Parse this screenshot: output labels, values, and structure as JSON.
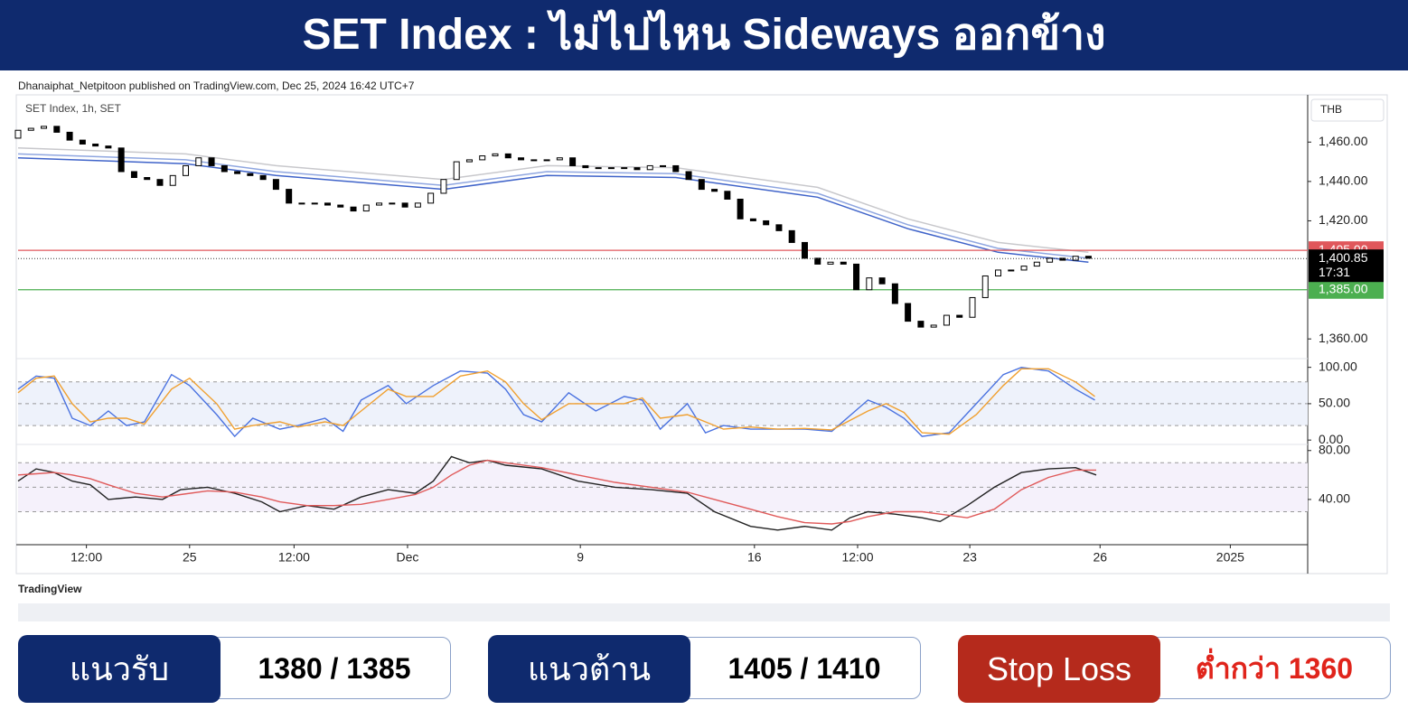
{
  "header": {
    "title": "SET Index : ไม่ไปไหน Sideways ออกข้าง"
  },
  "attribution": "Dhanaiphat_Netpitoon published on TradingView.com, Dec 25, 2024 16:42 UTC+7",
  "brand": "TradingView",
  "levels": [
    {
      "label": "แนวรับ",
      "value": "1380 / 1385",
      "color": "#0f2a6e",
      "text_color": "#000000"
    },
    {
      "label": "แนวต้าน",
      "value": "1405 / 1410",
      "color": "#0f2a6e",
      "text_color": "#000000"
    },
    {
      "label": "Stop Loss",
      "value": "ต่ำกว่า 1360",
      "color": "#b52a1c",
      "text_color": "#e0241b"
    }
  ],
  "chart_data": [
    {
      "type": "candlestick",
      "title": "SET Index, 1h, SET",
      "currency": "THB",
      "up_color": "#ffffff",
      "down_color": "#000000",
      "open": [
        1462,
        1466,
        1467,
        1468,
        1465,
        1461,
        1459,
        1458,
        1457,
        1445,
        1442,
        1441,
        1438,
        1443,
        1448,
        1452,
        1448,
        1445,
        1444,
        1443,
        1441,
        1436,
        1429,
        1429,
        1429,
        1428,
        1427,
        1425,
        1428,
        1429,
        1429,
        1427,
        1429,
        1434,
        1441,
        1450,
        1451,
        1453,
        1454,
        1452,
        1451,
        1451,
        1451,
        1452,
        1448,
        1447,
        1447,
        1447,
        1447,
        1446,
        1448,
        1448,
        1445,
        1441,
        1436,
        1435,
        1431,
        1421,
        1420,
        1418,
        1415,
        1409,
        1401,
        1398,
        1399,
        1398,
        1385,
        1391,
        1388,
        1378,
        1369,
        1366,
        1367,
        1372,
        1371,
        1381,
        1392,
        1395,
        1395,
        1397,
        1399,
        1401,
        1400,
        1402
      ],
      "close": [
        1466,
        1467,
        1468,
        1465,
        1461,
        1459,
        1458,
        1457,
        1445,
        1442,
        1441,
        1438,
        1443,
        1448,
        1452,
        1448,
        1445,
        1444,
        1443,
        1441,
        1436,
        1429,
        1429,
        1429,
        1428,
        1427,
        1425,
        1428,
        1429,
        1429,
        1427,
        1429,
        1434,
        1441,
        1450,
        1451,
        1453,
        1454,
        1452,
        1451,
        1451,
        1451,
        1452,
        1448,
        1447,
        1447,
        1447,
        1447,
        1446,
        1448,
        1448,
        1445,
        1441,
        1436,
        1435,
        1431,
        1421,
        1420,
        1418,
        1415,
        1409,
        1401,
        1398,
        1399,
        1398,
        1385,
        1391,
        1388,
        1378,
        1369,
        1366,
        1367,
        1372,
        1371,
        1381,
        1392,
        1395,
        1395,
        1397,
        1399,
        1401,
        1400,
        1402,
        1401
      ],
      "overlays": [
        {
          "color": "#c8c8cc",
          "x": [
            0,
            13,
            20,
            33,
            41,
            51,
            62,
            69,
            76,
            83
          ],
          "values": [
            1457,
            1454,
            1448,
            1441,
            1448,
            1447,
            1437,
            1421,
            1409,
            1404
          ]
        },
        {
          "color": "#8fa6e0",
          "x": [
            0,
            13,
            20,
            33,
            41,
            51,
            62,
            69,
            76,
            83
          ],
          "values": [
            1454,
            1451,
            1445,
            1438,
            1445,
            1444,
            1434,
            1418,
            1406,
            1401
          ]
        },
        {
          "color": "#3f63c9",
          "x": [
            0,
            13,
            20,
            33,
            41,
            51,
            62,
            69,
            76,
            83
          ],
          "values": [
            1452,
            1449,
            1443,
            1436,
            1443,
            1442,
            1432,
            1416,
            1404,
            1399
          ]
        }
      ],
      "price_lines": [
        {
          "value": 1405,
          "label": "1,405.00",
          "color": "#e0575b"
        },
        {
          "value": 1385,
          "label": "1,385.00",
          "color": "#4caf50"
        }
      ],
      "last_price": {
        "value": 1400.85,
        "label": "1,400.85"
      },
      "countdown": "17:31",
      "xlim": [
        0,
        100
      ],
      "ylim": [
        1350,
        1484
      ],
      "yticks": [
        {
          "value": 1460,
          "label": "1,460.00"
        },
        {
          "value": 1440,
          "label": "1,440.00"
        },
        {
          "value": 1420,
          "label": "1,420.00"
        },
        {
          "value": 1360,
          "label": "1,360.00"
        }
      ]
    },
    {
      "type": "line",
      "x": [
        0,
        1.4,
        2.8,
        4.2,
        5.6,
        7.0,
        8.4,
        9.8,
        11.9,
        13.3,
        15.4,
        16.8,
        18.2,
        20.3,
        21.7,
        23.8,
        25.2,
        26.6,
        28.7,
        30.1,
        32.2,
        34.3,
        36.4,
        37.8,
        39.2,
        40.6,
        42.7,
        44.8,
        47.0,
        48.4,
        49.8,
        51.9,
        53.3,
        54.7,
        56.8,
        58.9,
        61.0,
        63.1,
        65.9,
        67.3,
        68.7,
        70.1,
        72.2,
        74.3,
        76.4,
        77.8,
        79.9,
        82.0,
        83.5
      ],
      "series": [
        {
          "color": "#4a72e0",
          "values": [
            70,
            88,
            85,
            30,
            20,
            40,
            20,
            25,
            90,
            75,
            35,
            5,
            30,
            15,
            20,
            30,
            12,
            55,
            75,
            50,
            75,
            95,
            92,
            70,
            35,
            25,
            65,
            40,
            60,
            55,
            15,
            50,
            10,
            20,
            15,
            15,
            15,
            12,
            55,
            45,
            30,
            5,
            10,
            50,
            90,
            100,
            95,
            70,
            55
          ]
        },
        {
          "color": "#f0a030",
          "values": [
            65,
            85,
            88,
            50,
            25,
            30,
            30,
            22,
            70,
            85,
            50,
            15,
            20,
            25,
            18,
            25,
            20,
            40,
            70,
            60,
            60,
            88,
            95,
            80,
            50,
            28,
            50,
            50,
            50,
            58,
            30,
            35,
            25,
            15,
            18,
            15,
            16,
            14,
            40,
            50,
            38,
            10,
            8,
            35,
            75,
            98,
            98,
            80,
            60
          ]
        }
      ],
      "guides": [
        20,
        50,
        80
      ],
      "band_color": "#eef2fb",
      "xlim": [
        0,
        100
      ],
      "ylim": [
        -6,
        112
      ],
      "yticks": [
        {
          "value": 100,
          "label": "100.00"
        },
        {
          "value": 50,
          "label": "50.00"
        },
        {
          "value": 0,
          "label": "0.00"
        }
      ]
    },
    {
      "type": "line",
      "x": [
        0,
        1.4,
        2.8,
        4.2,
        5.6,
        7.0,
        9.1,
        11.2,
        12.6,
        14.7,
        16.8,
        18.9,
        20.3,
        22.4,
        24.5,
        26.6,
        28.7,
        30.8,
        32.2,
        33.6,
        35.0,
        36.4,
        37.8,
        40.6,
        43.4,
        46.3,
        49.1,
        51.9,
        54.0,
        56.8,
        58.9,
        61.0,
        63.1,
        64.5,
        65.9,
        68.0,
        70.1,
        71.5,
        73.6,
        75.7,
        77.8,
        79.9,
        82.0,
        83.6
      ],
      "series": [
        {
          "color": "#222222",
          "values": [
            55,
            65,
            62,
            55,
            52,
            40,
            42,
            40,
            48,
            50,
            45,
            38,
            30,
            35,
            32,
            42,
            48,
            45,
            55,
            75,
            70,
            72,
            68,
            65,
            55,
            50,
            48,
            45,
            30,
            18,
            15,
            18,
            15,
            25,
            30,
            28,
            25,
            22,
            35,
            50,
            62,
            65,
            66,
            60
          ]
        },
        {
          "color": "#e05a5a",
          "values": [
            60,
            61,
            62,
            60,
            57,
            52,
            45,
            42,
            44,
            47,
            46,
            42,
            38,
            35,
            35,
            36,
            40,
            44,
            50,
            60,
            68,
            72,
            70,
            66,
            60,
            54,
            50,
            46,
            40,
            32,
            26,
            21,
            20,
            22,
            26,
            30,
            30,
            28,
            25,
            32,
            48,
            58,
            64,
            64
          ]
        }
      ],
      "guides": [
        30,
        50,
        70
      ],
      "band_color": "#f5f1fb",
      "xlim": [
        0,
        100
      ],
      "ylim": [
        3,
        85
      ],
      "yticks": [
        {
          "value": 80,
          "label": "80.00"
        },
        {
          "value": 40,
          "label": "40.00"
        }
      ],
      "xticks": [
        {
          "value": 5.3,
          "label": "12:00"
        },
        {
          "value": 13.3,
          "label": "25"
        },
        {
          "value": 21.4,
          "label": "12:00"
        },
        {
          "value": 30.2,
          "label": "Dec"
        },
        {
          "value": 43.6,
          "label": "9"
        },
        {
          "value": 57.1,
          "label": "16"
        },
        {
          "value": 65.1,
          "label": "12:00"
        },
        {
          "value": 73.8,
          "label": "23"
        },
        {
          "value": 83.9,
          "label": "26"
        },
        {
          "value": 94.0,
          "label": "2025"
        }
      ]
    }
  ]
}
